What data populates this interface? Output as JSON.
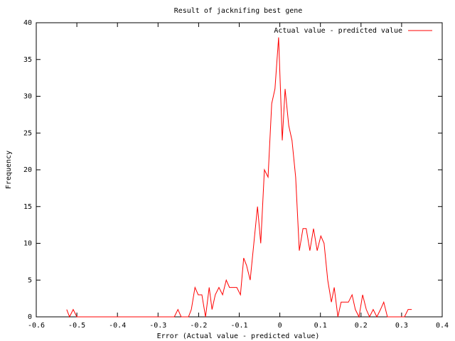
{
  "chart_data": {
    "type": "line",
    "title": "Result of jacknifing best gene",
    "x_label": "Error (Actual value - predicted value)",
    "y_label": "Frequency",
    "legend_position": "top-right",
    "xlim": [
      -0.6,
      0.4
    ],
    "xticks": [
      -0.6,
      -0.5,
      -0.4,
      -0.3,
      -0.2,
      -0.1,
      0,
      0.1,
      0.2,
      0.3,
      0.4
    ],
    "ylim": [
      0,
      40
    ],
    "yticks": [
      0,
      5,
      10,
      15,
      20,
      25,
      30,
      35,
      40
    ],
    "x": [
      -0.525,
      -0.518,
      -0.509,
      -0.5,
      -0.26,
      -0.251,
      -0.243,
      -0.225,
      -0.218,
      -0.209,
      -0.201,
      -0.192,
      -0.183,
      -0.174,
      -0.167,
      -0.159,
      -0.15,
      -0.141,
      -0.132,
      -0.124,
      -0.115,
      -0.106,
      -0.097,
      -0.089,
      -0.082,
      -0.073,
      -0.064,
      -0.055,
      -0.047,
      -0.038,
      -0.029,
      -0.02,
      -0.012,
      -0.003,
      0.006,
      0.013,
      0.022,
      0.03,
      0.039,
      0.048,
      0.057,
      0.065,
      0.074,
      0.083,
      0.092,
      0.101,
      0.109,
      0.118,
      0.127,
      0.134,
      0.143,
      0.151,
      0.16,
      0.169,
      0.178,
      0.186,
      0.195,
      0.204,
      0.213,
      0.221,
      0.23,
      0.239,
      0.248,
      0.256,
      0.265,
      0.3,
      0.307,
      0.316,
      0.325
    ],
    "series": [
      {
        "name": "Actual value - predicted value",
        "color": "#ff0000",
        "values": [
          1,
          0,
          1,
          0,
          0,
          1,
          0,
          0,
          1,
          4,
          3,
          3,
          0,
          4,
          1,
          3,
          4,
          3,
          5,
          4,
          4,
          4,
          3,
          8,
          7,
          5,
          10,
          15,
          10,
          20,
          19,
          29,
          31,
          38,
          24,
          31,
          26,
          24,
          19,
          9,
          12,
          12,
          9,
          12,
          9,
          11,
          10,
          5,
          2,
          4,
          0,
          2,
          2,
          2,
          3,
          1,
          0,
          3,
          1,
          0,
          1,
          0,
          1,
          2,
          0,
          0,
          0,
          1,
          1
        ]
      }
    ]
  }
}
